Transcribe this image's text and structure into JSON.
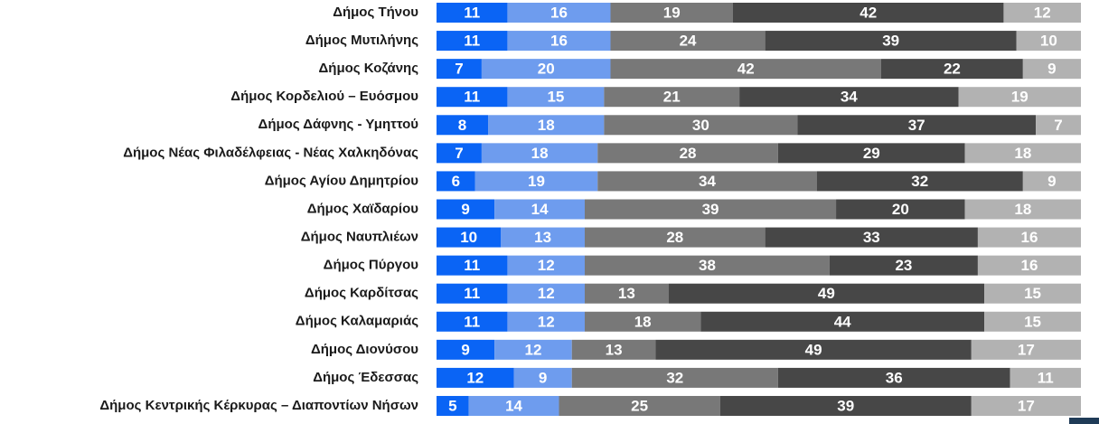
{
  "chart_data": {
    "type": "stacked-barh",
    "categories": [
      "Δήμος Τήνου",
      "Δήμος Μυτιλήνης",
      "Δήμος Κοζάνης",
      "Δήμος Κορδελιού – Ευόσμου",
      "Δήμος Δάφνης - Υμηττού",
      "Δήμος Νέας Φιλαδέλφειας - Νέας Χαλκηδόνας",
      "Δήμος Αγίου Δημητρίου",
      "Δήμος Χαϊδαρίου",
      "Δήμος Ναυπλιέων",
      "Δήμος Πύργου",
      "Δήμος Καρδίτσας",
      "Δήμος Καλαμαριάς",
      "Δήμος Διονύσου",
      "Δήμος Έδεσσας",
      "Δήμος Κεντρικής Κέρκυρας – Διαποντίων Νήσων"
    ],
    "series": [
      {
        "color": "#0a64f5",
        "values": [
          11,
          11,
          7,
          11,
          8,
          7,
          6,
          9,
          10,
          11,
          11,
          11,
          9,
          12,
          5
        ]
      },
      {
        "color": "#6e9cee",
        "values": [
          16,
          16,
          20,
          15,
          18,
          18,
          19,
          14,
          13,
          12,
          12,
          12,
          12,
          9,
          14
        ]
      },
      {
        "color": "#787878",
        "values": [
          19,
          24,
          42,
          21,
          30,
          28,
          34,
          39,
          28,
          38,
          13,
          18,
          13,
          32,
          25
        ]
      },
      {
        "color": "#474747",
        "values": [
          42,
          39,
          22,
          34,
          37,
          29,
          32,
          20,
          33,
          23,
          49,
          44,
          49,
          36,
          39
        ]
      },
      {
        "color": "#b2b2b2",
        "values": [
          12,
          10,
          9,
          19,
          7,
          18,
          9,
          18,
          16,
          16,
          15,
          15,
          17,
          11,
          17
        ]
      }
    ],
    "xlim": [
      0,
      100
    ]
  }
}
